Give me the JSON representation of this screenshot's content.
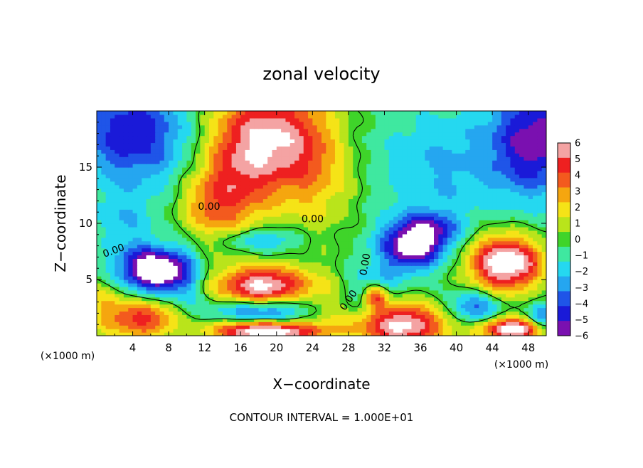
{
  "chart_data": {
    "type": "heatmap",
    "title": "zonal velocity",
    "xlabel": "X−coordinate",
    "ylabel": "Z−coordinate",
    "x_unit_label_left": "(×1000 m)",
    "x_unit_label_right": "(×1000 m)",
    "footer": "CONTOUR INTERVAL = 1.000E+01",
    "xlim": [
      0,
      50
    ],
    "ylim": [
      0,
      20
    ],
    "x_ticks": [
      4,
      8,
      12,
      16,
      20,
      24,
      28,
      32,
      36,
      40,
      44,
      48
    ],
    "y_ticks": [
      5,
      10,
      15
    ],
    "colorbar": {
      "levels": [
        6,
        5,
        4,
        3,
        2,
        1,
        0,
        -1,
        -2,
        -3,
        -4,
        -5,
        -6
      ],
      "level_labels": [
        "6",
        "5",
        "4",
        "3",
        "2",
        "1",
        "0",
        "−1",
        "−2",
        "−3",
        "−4",
        "−5",
        "−6"
      ],
      "colors": [
        "#f4a3a3",
        "#ee2020",
        "#f35a1e",
        "#f5a60f",
        "#f5e317",
        "#b9e41b",
        "#3fd42a",
        "#3fe8a0",
        "#25d8f0",
        "#25a6f0",
        "#1f55e8",
        "#1a1ad8",
        "#7a10b0"
      ]
    },
    "contour_labels": [
      "0.00",
      "0.00",
      "0.00",
      "0.00",
      "0.00"
    ],
    "value_range": [
      -6,
      6
    ],
    "saturation_colors": {
      "above_max": "#ffffff",
      "below_min": "#ffffff"
    }
  }
}
